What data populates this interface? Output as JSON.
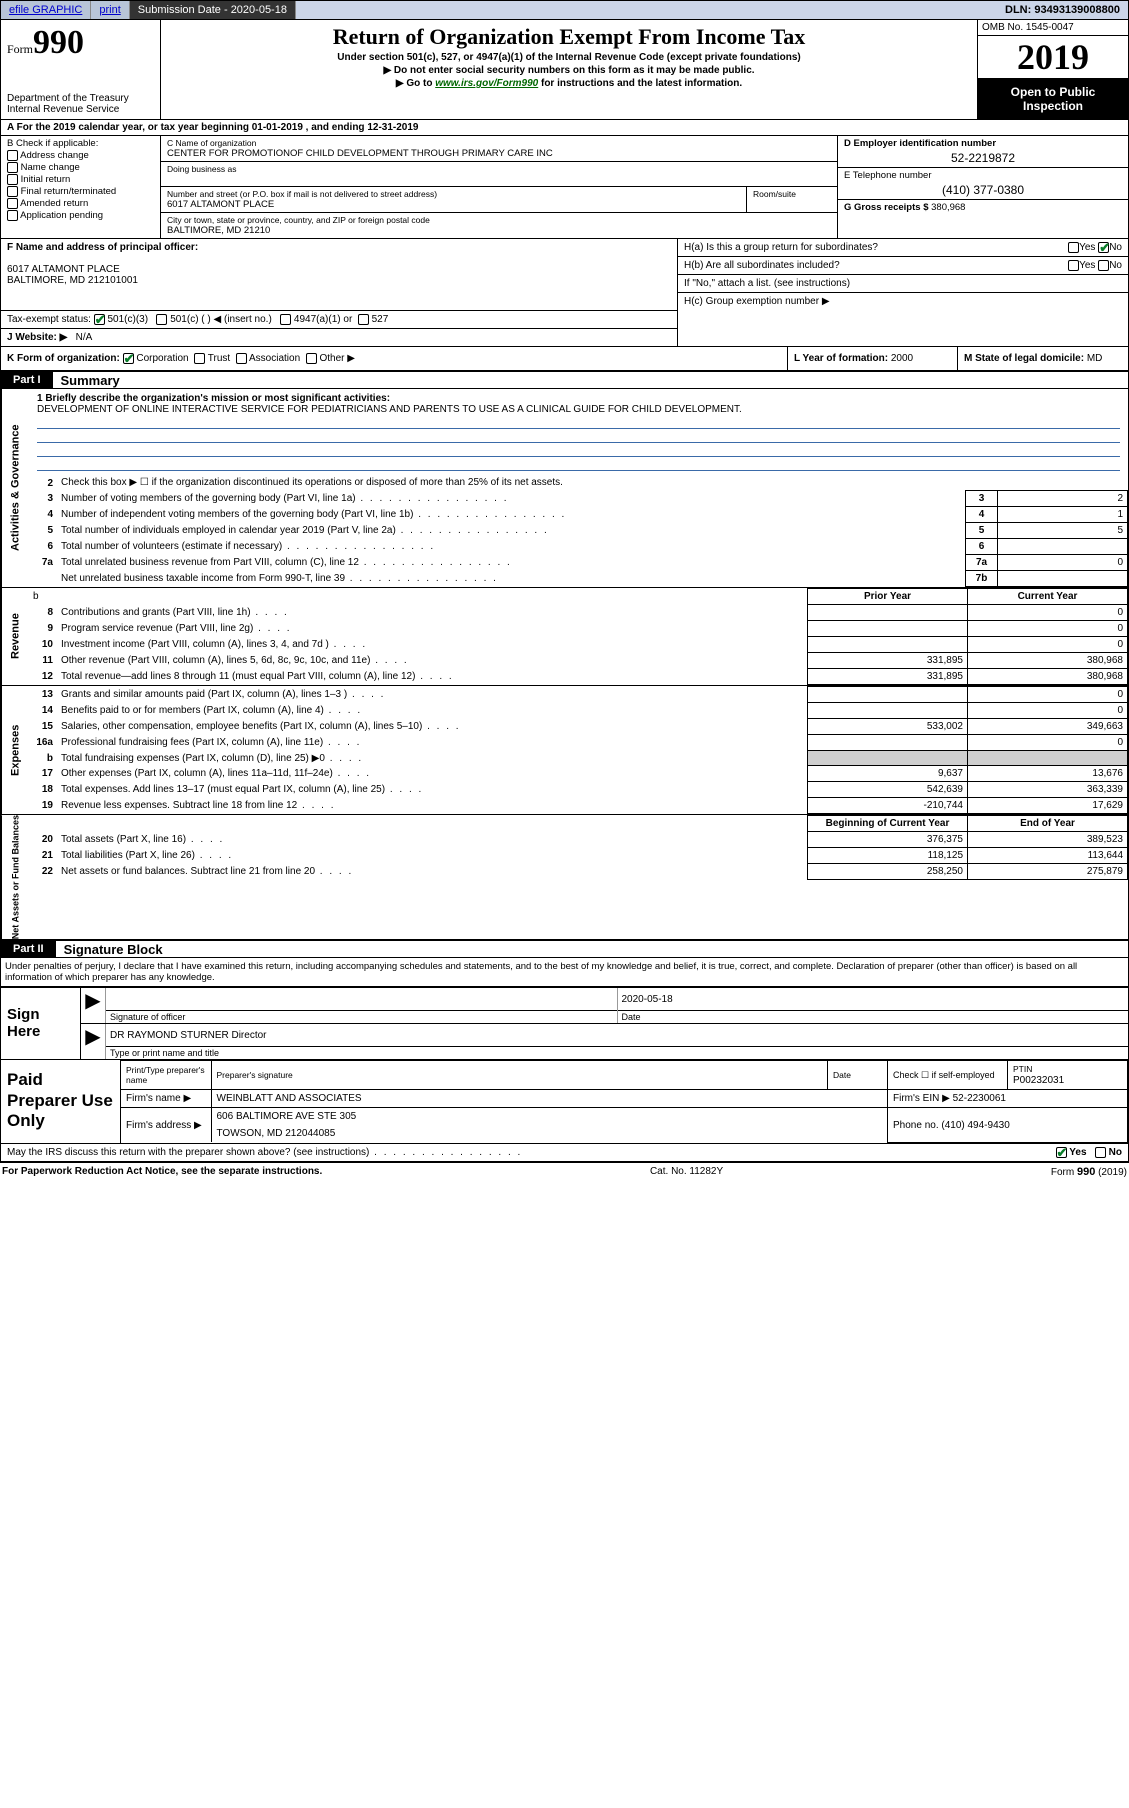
{
  "top_bar": {
    "efile": "efile GRAPHIC",
    "print": "print",
    "submission_label": "Submission Date - 2020-05-18",
    "dln": "DLN: 93493139008800"
  },
  "header": {
    "form_label": "Form",
    "form_number": "990",
    "dept": "Department of the Treasury",
    "irs": "Internal Revenue Service",
    "title": "Return of Organization Exempt From Income Tax",
    "subtitle": "Under section 501(c), 527, or 4947(a)(1) of the Internal Revenue Code (except private foundations)",
    "line1": "▶ Do not enter social security numbers on this form as it may be made public.",
    "line2_pre": "▶ Go to ",
    "line2_link": "www.irs.gov/Form990",
    "line2_post": " for instructions and the latest information.",
    "omb": "OMB No. 1545-0047",
    "year": "2019",
    "open_public": "Open to Public Inspection"
  },
  "line_a": "A For the 2019 calendar year, or tax year beginning 01-01-2019    , and ending 12-31-2019",
  "section_b": {
    "label": "B Check if applicable:",
    "items": [
      "Address change",
      "Name change",
      "Initial return",
      "Final return/terminated",
      "Amended return",
      "Application pending"
    ]
  },
  "section_c": {
    "name_label": "C Name of organization",
    "org_name": "CENTER FOR PROMOTIONOF CHILD DEVELOPMENT THROUGH PRIMARY CARE INC",
    "dba_label": "Doing business as",
    "addr_label": "Number and street (or P.O. box if mail is not delivered to street address)",
    "room_label": "Room/suite",
    "addr": "6017 ALTAMONT PLACE",
    "city_label": "City or town, state or province, country, and ZIP or foreign postal code",
    "city": "BALTIMORE, MD  21210"
  },
  "section_d": {
    "ein_label": "D Employer identification number",
    "ein": "52-2219872",
    "phone_label": "E Telephone number",
    "phone": "(410) 377-0380",
    "gross_label": "G Gross receipts $ ",
    "gross": "380,968"
  },
  "section_f": {
    "label": "F  Name and address of principal officer:",
    "addr1": "6017 ALTAMONT PLACE",
    "addr2": "BALTIMORE, MD  212101001"
  },
  "section_h": {
    "ha": "H(a)  Is this a group return for subordinates?",
    "hb": "H(b)  Are all subordinates included?",
    "hb_note": "If \"No,\" attach a list. (see instructions)",
    "hc": "H(c)  Group exemption number ▶"
  },
  "tax_exempt_label": "Tax-exempt status:",
  "tax_exempt_opts": [
    "501(c)(3)",
    "501(c) (  ) ◀ (insert no.)",
    "4947(a)(1) or",
    "527"
  ],
  "website_label": "J  Website: ▶",
  "website_val": "N/A",
  "k_label": "K Form of organization:",
  "k_opts": [
    "Corporation",
    "Trust",
    "Association",
    "Other ▶"
  ],
  "l_label": "L Year of formation: ",
  "l_val": "2000",
  "m_label": "M State of legal domicile: ",
  "m_val": "MD",
  "part1": {
    "tag": "Part I",
    "title": "Summary",
    "q1_label": "1  Briefly describe the organization's mission or most significant activities:",
    "q1_ans": "DEVELOPMENT OF ONLINE INTERACTIVE SERVICE FOR PEDIATRICIANS AND PARENTS TO USE AS A CLINICAL GUIDE FOR CHILD DEVELOPMENT.",
    "q2": "Check this box ▶ ☐  if the organization discontinued its operations or disposed of more than 25% of its net assets.",
    "rows_act": [
      {
        "n": "3",
        "d": "Number of voting members of the governing body (Part VI, line 1a)",
        "box": "3",
        "v": "2"
      },
      {
        "n": "4",
        "d": "Number of independent voting members of the governing body (Part VI, line 1b)",
        "box": "4",
        "v": "1"
      },
      {
        "n": "5",
        "d": "Total number of individuals employed in calendar year 2019 (Part V, line 2a)",
        "box": "5",
        "v": "5"
      },
      {
        "n": "6",
        "d": "Total number of volunteers (estimate if necessary)",
        "box": "6",
        "v": ""
      },
      {
        "n": "7a",
        "d": "Total unrelated business revenue from Part VIII, column (C), line 12",
        "box": "7a",
        "v": "0"
      },
      {
        "n": "",
        "d": "Net unrelated business taxable income from Form 990-T, line 39",
        "box": "7b",
        "v": ""
      }
    ],
    "col_prior": "Prior Year",
    "col_current": "Current Year",
    "rows_rev": [
      {
        "n": "8",
        "d": "Contributions and grants (Part VIII, line 1h)",
        "p": "",
        "c": "0"
      },
      {
        "n": "9",
        "d": "Program service revenue (Part VIII, line 2g)",
        "p": "",
        "c": "0"
      },
      {
        "n": "10",
        "d": "Investment income (Part VIII, column (A), lines 3, 4, and 7d )",
        "p": "",
        "c": "0"
      },
      {
        "n": "11",
        "d": "Other revenue (Part VIII, column (A), lines 5, 6d, 8c, 9c, 10c, and 11e)",
        "p": "331,895",
        "c": "380,968"
      },
      {
        "n": "12",
        "d": "Total revenue—add lines 8 through 11 (must equal Part VIII, column (A), line 12)",
        "p": "331,895",
        "c": "380,968"
      }
    ],
    "rows_exp": [
      {
        "n": "13",
        "d": "Grants and similar amounts paid (Part IX, column (A), lines 1–3 )",
        "p": "",
        "c": "0"
      },
      {
        "n": "14",
        "d": "Benefits paid to or for members (Part IX, column (A), line 4)",
        "p": "",
        "c": "0"
      },
      {
        "n": "15",
        "d": "Salaries, other compensation, employee benefits (Part IX, column (A), lines 5–10)",
        "p": "533,002",
        "c": "349,663"
      },
      {
        "n": "16a",
        "d": "Professional fundraising fees (Part IX, column (A), line 11e)",
        "p": "",
        "c": "0"
      },
      {
        "n": "b",
        "d": "Total fundraising expenses (Part IX, column (D), line 25) ▶0",
        "p": "GREY",
        "c": "GREY"
      },
      {
        "n": "17",
        "d": "Other expenses (Part IX, column (A), lines 11a–11d, 11f–24e)",
        "p": "9,637",
        "c": "13,676"
      },
      {
        "n": "18",
        "d": "Total expenses. Add lines 13–17 (must equal Part IX, column (A), line 25)",
        "p": "542,639",
        "c": "363,339"
      },
      {
        "n": "19",
        "d": "Revenue less expenses. Subtract line 18 from line 12",
        "p": "-210,744",
        "c": "17,629"
      }
    ],
    "col_begin": "Beginning of Current Year",
    "col_end": "End of Year",
    "rows_net": [
      {
        "n": "20",
        "d": "Total assets (Part X, line 16)",
        "p": "376,375",
        "c": "389,523"
      },
      {
        "n": "21",
        "d": "Total liabilities (Part X, line 26)",
        "p": "118,125",
        "c": "113,644"
      },
      {
        "n": "22",
        "d": "Net assets or fund balances. Subtract line 21 from line 20",
        "p": "258,250",
        "c": "275,879"
      }
    ],
    "vtab_act": "Activities & Governance",
    "vtab_rev": "Revenue",
    "vtab_exp": "Expenses",
    "vtab_net": "Net Assets or Fund Balances"
  },
  "part2": {
    "tag": "Part II",
    "title": "Signature Block",
    "penalty": "Under penalties of perjury, I declare that I have examined this return, including accompanying schedules and statements, and to the best of my knowledge and belief, it is true, correct, and complete. Declaration of preparer (other than officer) is based on all information of which preparer has any knowledge.",
    "sign_here": "Sign Here",
    "sig_officer_lbl": "Signature of officer",
    "sig_date_lbl": "Date",
    "sig_date": "2020-05-18",
    "sig_name": "DR RAYMOND STURNER  Director",
    "sig_name_lbl": "Type or print name and title",
    "paid_prep": "Paid Preparer Use Only",
    "prep_name_lbl": "Print/Type preparer's name",
    "prep_sig_lbl": "Preparer's signature",
    "prep_date_lbl": "Date",
    "prep_self": "Check ☐ if self-employed",
    "ptin_lbl": "PTIN",
    "ptin": "P00232031",
    "firm_name_lbl": "Firm's name     ▶",
    "firm_name": "WEINBLATT AND ASSOCIATES",
    "firm_ein_lbl": "Firm's EIN ▶",
    "firm_ein": "52-2230061",
    "firm_addr_lbl": "Firm's address ▶",
    "firm_addr1": "606 BALTIMORE AVE STE 305",
    "firm_addr2": "TOWSON, MD  212044085",
    "firm_phone_lbl": "Phone no. ",
    "firm_phone": "(410) 494-9430",
    "irs_discuss": "May the IRS discuss this return with the preparer shown above? (see instructions)"
  },
  "footer": {
    "left": "For Paperwork Reduction Act Notice, see the separate instructions.",
    "mid": "Cat. No. 11282Y",
    "right_pre": "Form ",
    "right_b": "990",
    "right_post": " (2019)"
  },
  "labels": {
    "yes": "Yes",
    "no": "No"
  }
}
